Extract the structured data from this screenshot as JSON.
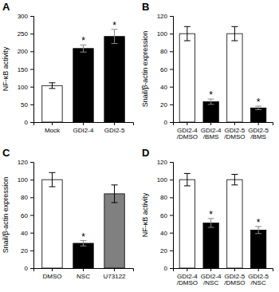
{
  "chart_data": [
    {
      "type": "bar",
      "title": "A",
      "categories": [
        "Mock",
        "GDI2-4",
        "GDI2-5"
      ],
      "values": [
        103,
        208,
        242
      ],
      "errors": [
        8,
        10,
        20
      ],
      "colors": [
        "white",
        "black",
        "black"
      ],
      "ylabel": "NF-κB activity",
      "ylim": [
        0,
        300
      ],
      "yticks": [
        0,
        50,
        100,
        150,
        200,
        250,
        300
      ],
      "annotations": [
        null,
        "*",
        "*"
      ]
    },
    {
      "type": "bar",
      "title": "B",
      "categories": [
        "GDI2-4\n/DMSO",
        "GDI2-4\n/BMS",
        "GDI2-5\n/DMSO",
        "GDI2-5\n/BMS"
      ],
      "values": [
        100,
        23,
        100,
        16
      ],
      "errors": [
        8,
        3,
        8,
        2
      ],
      "colors": [
        "white",
        "black",
        "white",
        "black"
      ],
      "ylabel": "Snail/β-actin expression",
      "ylim": [
        0,
        120
      ],
      "yticks": [
        0,
        20,
        40,
        60,
        80,
        100,
        120
      ],
      "annotations": [
        null,
        "*",
        null,
        "*"
      ]
    },
    {
      "type": "bar",
      "title": "C",
      "categories": [
        "DMSO",
        "NSC",
        "U73122"
      ],
      "values": [
        100,
        28,
        84
      ],
      "errors": [
        8,
        3,
        10
      ],
      "colors": [
        "white",
        "black",
        "#808080"
      ],
      "ylabel": "Snail/β-actin expression",
      "ylim": [
        0,
        120
      ],
      "yticks": [
        0,
        20,
        40,
        60,
        80,
        100,
        120
      ],
      "annotations": [
        null,
        "*",
        null
      ]
    },
    {
      "type": "bar",
      "title": "D",
      "categories": [
        "GDI2-4\n/DMSO",
        "GDI2-4\n/NSC",
        "GDI2-5\n/DMSO",
        "GDI2-5\n/NSC"
      ],
      "values": [
        100,
        51,
        100,
        43
      ],
      "errors": [
        7,
        5,
        6,
        4
      ],
      "colors": [
        "white",
        "black",
        "white",
        "black"
      ],
      "ylabel": "NF-κB activity",
      "ylim": [
        0,
        120
      ],
      "yticks": [
        0,
        20,
        40,
        60,
        80,
        100,
        120
      ],
      "annotations": [
        null,
        "*",
        null,
        "*"
      ]
    }
  ]
}
